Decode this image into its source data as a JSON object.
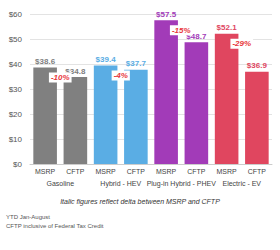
{
  "chart_data": {
    "type": "bar",
    "categories": [
      "MSRP",
      "CFTP",
      "MSRP",
      "CFTP",
      "MSRP",
      "CFTP",
      "MSRP",
      "CFTP"
    ],
    "groups": [
      "Gasoline",
      "Hybrid - HEV",
      "Plug-in Hybrid - PHEV",
      "Electric - EV"
    ],
    "values": [
      38.6,
      34.8,
      39.4,
      37.7,
      57.5,
      48.7,
      52.1,
      36.9
    ],
    "value_labels": [
      "$38.6",
      "$34.8",
      "$39.4",
      "$37.7",
      "$57.5",
      "$48.7",
      "$52.1",
      "$36.9"
    ],
    "colors": [
      "#808080",
      "#808080",
      "#5aade4",
      "#5aade4",
      "#a23bb8",
      "#a23bb8",
      "#e0465f",
      "#e0465f"
    ],
    "deltas": {
      "values": [
        -10,
        -4,
        -15,
        -29
      ],
      "value_labels": [
        "-10%",
        "-4%",
        "-15%",
        "-29%"
      ],
      "color": "#e8383d"
    },
    "footnotes": [
      "Italic figures reflect delta between MSRP and CFTP",
      "YTD Jan-August",
      "CFTP inclusive of Federal Tax Credit"
    ],
    "ylim": [
      0,
      60
    ],
    "yticks": [
      {
        "value": 0,
        "label": "$0"
      },
      {
        "value": 10,
        "label": "$10"
      },
      {
        "value": 20,
        "label": "$20"
      },
      {
        "value": 30,
        "label": "$30"
      },
      {
        "value": 40,
        "label": "$40"
      },
      {
        "value": 50,
        "label": "$50"
      },
      {
        "value": 60,
        "label": "$60"
      }
    ],
    "grid": true,
    "data_labels": true
  }
}
